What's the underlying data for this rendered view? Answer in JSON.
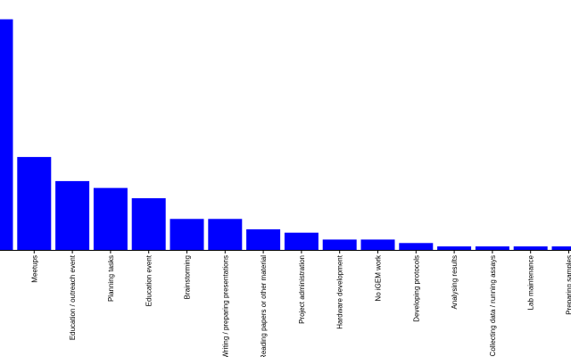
{
  "chart_data": {
    "type": "bar",
    "categories": [
      "",
      "Meetups",
      "Education / outreach event",
      "Planning tasks",
      "Education event",
      "Brainstorming",
      "Writing / preparing presentations",
      "Reading papers or other material",
      "Project administration",
      "Hardware development",
      "No iGEM work",
      "Developing protocols",
      "Analysing results",
      "Collecting data / running assays",
      "Lab maintenance",
      "Preparing samples"
    ],
    "values": [
      67,
      27,
      20,
      18,
      15,
      9,
      9,
      6,
      5,
      3,
      3,
      2,
      1,
      1,
      1,
      1
    ],
    "title": "",
    "xlabel": "",
    "ylabel": "",
    "ylim": [
      0,
      70
    ],
    "grid": false,
    "legend": "none",
    "bar_color": "#0000ff",
    "axis_color": "#000000",
    "background": "#ffffff"
  }
}
